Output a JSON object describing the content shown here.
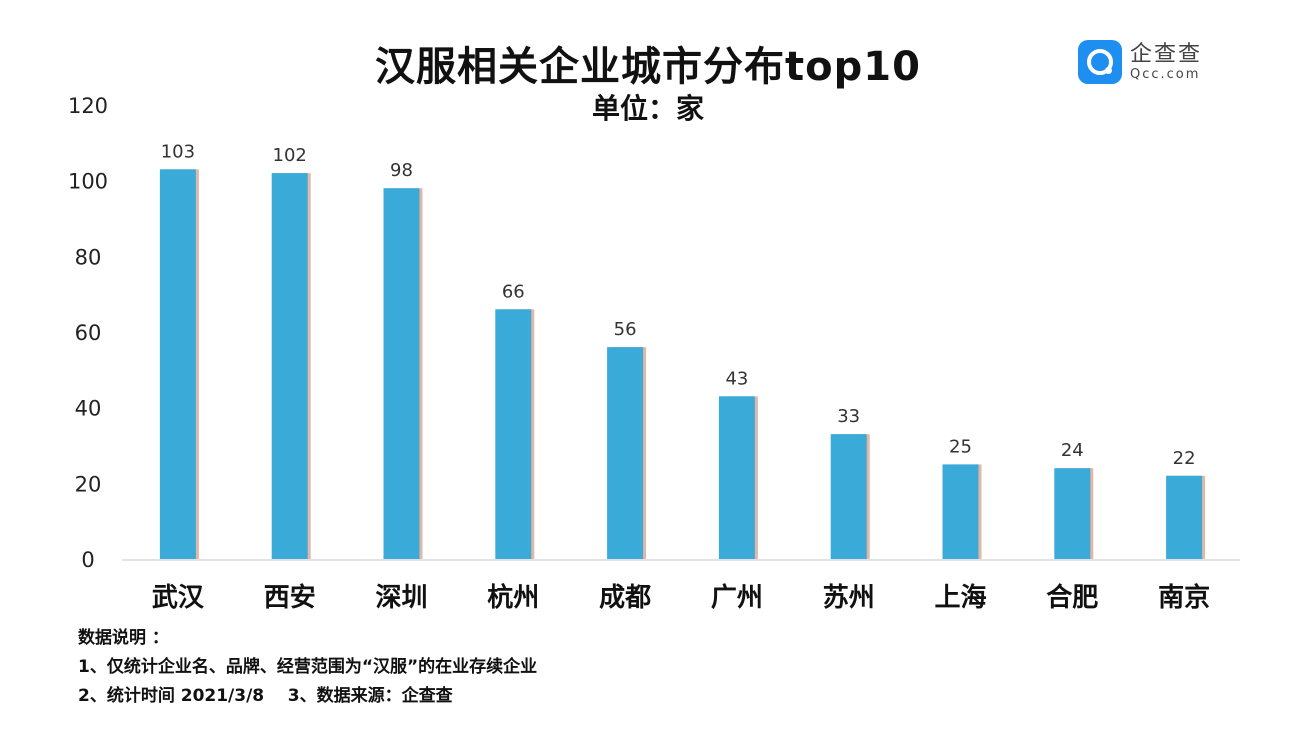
{
  "header": {
    "title": "汉服相关企业城市分布top10",
    "unit": "单位：家"
  },
  "logo": {
    "icon": "qcc-logo-icon",
    "name_cn": "企查查",
    "name_en": "Qcc.com",
    "color": "#1e8ef0"
  },
  "chart_data": {
    "type": "bar",
    "categories": [
      "武汉",
      "西安",
      "深圳",
      "杭州",
      "成都",
      "广州",
      "苏州",
      "上海",
      "合肥",
      "南京"
    ],
    "values": [
      103,
      102,
      98,
      66,
      56,
      43,
      33,
      25,
      24,
      22
    ],
    "ylim": [
      0,
      120
    ],
    "yticks": [
      "0",
      "20",
      "40",
      "60",
      "80",
      "100",
      "120"
    ],
    "bar_color": "#3aaad8",
    "shadow_color": "#e3b7a8",
    "grid": false,
    "legend": "none"
  },
  "notes": {
    "heading": "数据说明 ：",
    "line1": "1、仅统计企业名、品牌、经营范围为“汉服”的在业存续企业",
    "line2": "2、统计时间 2021/3/8    3、数据来源：企查查"
  }
}
